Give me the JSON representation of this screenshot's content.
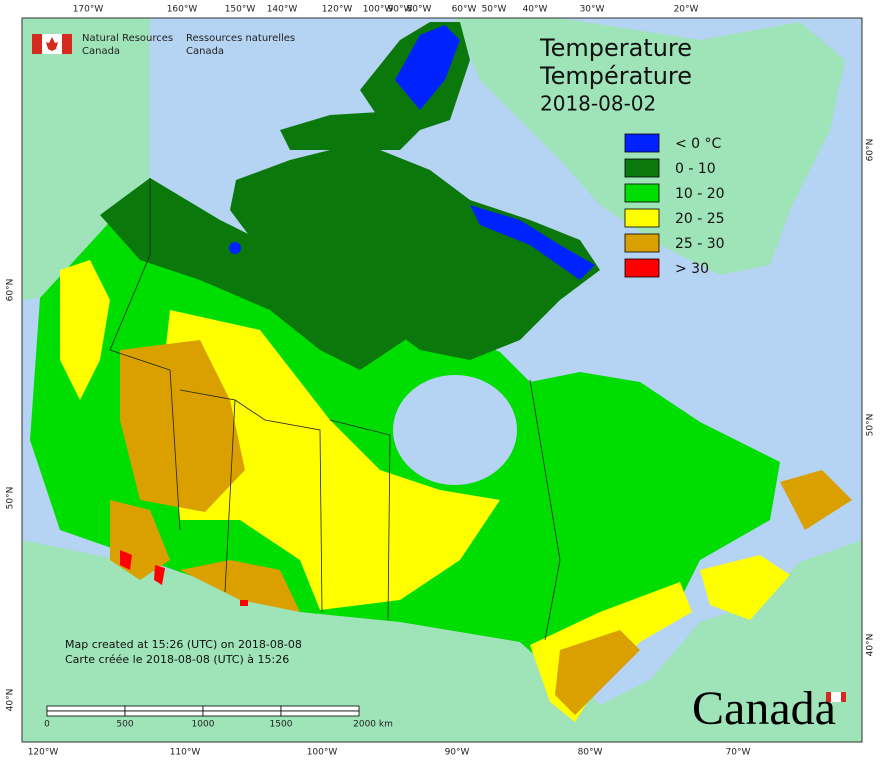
{
  "agency_en": [
    "Natural Resources",
    "Canada"
  ],
  "agency_fr": [
    "Ressources naturelles",
    "Canada"
  ],
  "title": [
    "Temperature",
    "Température",
    "2018-08-02"
  ],
  "legend": [
    {
      "label": "< 0 °C",
      "color": "#0022ff"
    },
    {
      "label": "0 - 10",
      "color": "#0a780a"
    },
    {
      "label": "10 - 20",
      "color": "#00dd00"
    },
    {
      "label": "20 - 25",
      "color": "#ffff00"
    },
    {
      "label": "25 - 30",
      "color": "#d9a000"
    },
    {
      "label": "> 30",
      "color": "#ff0000"
    }
  ],
  "top_longitudes": [
    "170°W",
    "160°W",
    "150°W",
    "140°W",
    "120°W",
    "100°W",
    "90°W",
    "80°W",
    "60°W",
    "50°W",
    "40°W",
    "30°W",
    "20°W"
  ],
  "bottom_longitudes": [
    "120°W",
    "110°W",
    "100°W",
    "90°W",
    "80°W",
    "70°W"
  ],
  "left_latitudes": [
    "60°N",
    "50°N",
    "40°N"
  ],
  "right_latitudes": [
    "60°N",
    "50°N",
    "40°N"
  ],
  "footer": [
    "Map created at 15:26 (UTC) on 2018-08-08",
    "Carte créée le 2018-08-08 (UTC) à 15:26"
  ],
  "scale_labels": [
    "0",
    "500",
    "1000",
    "1500",
    "2000 km"
  ],
  "wordmark": "Canada"
}
